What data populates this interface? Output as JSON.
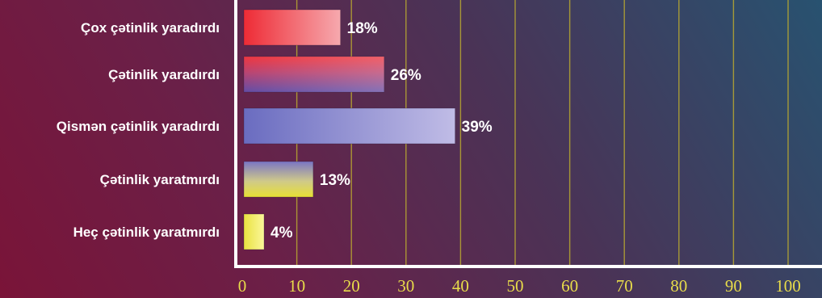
{
  "chart_data": {
    "type": "bar",
    "orientation": "horizontal",
    "categories": [
      "Çox çətinlik yaradırdı",
      "Çətinlik yaradırdı",
      "Qismən çətinlik yaradırdı",
      "Çətinlik yaratmırdı",
      "Heç çətinlik yaratmırdı"
    ],
    "values": [
      18,
      26,
      39,
      13,
      4
    ],
    "value_labels": [
      "18%",
      "26%",
      "39%",
      "13%",
      "4%"
    ],
    "xlim": [
      0,
      100
    ],
    "x_ticks": [
      0,
      10,
      20,
      30,
      40,
      50,
      60,
      70,
      80,
      90,
      100
    ],
    "x_tick_labels": [
      "0",
      "10",
      "20",
      "30",
      "40",
      "50",
      "60",
      "70",
      "80",
      "90",
      "100"
    ],
    "grid": "vertical",
    "title": "",
    "xlabel": "",
    "ylabel": "",
    "colors": {
      "grid": "#b8a830",
      "axis": "#ffffff",
      "tick_text": "#e8dc4a",
      "label_text": "#ffffff",
      "bar_gradients": [
        [
          "#ee2b35",
          "#f6a9ae"
        ],
        [
          "#ee2b35",
          "#5b43a0"
        ],
        [
          "#6a6cc0",
          "#c0bce6"
        ],
        [
          "#7a75c4",
          "#e8e034"
        ],
        [
          "#e9e240",
          "#fbf79a"
        ]
      ]
    }
  }
}
